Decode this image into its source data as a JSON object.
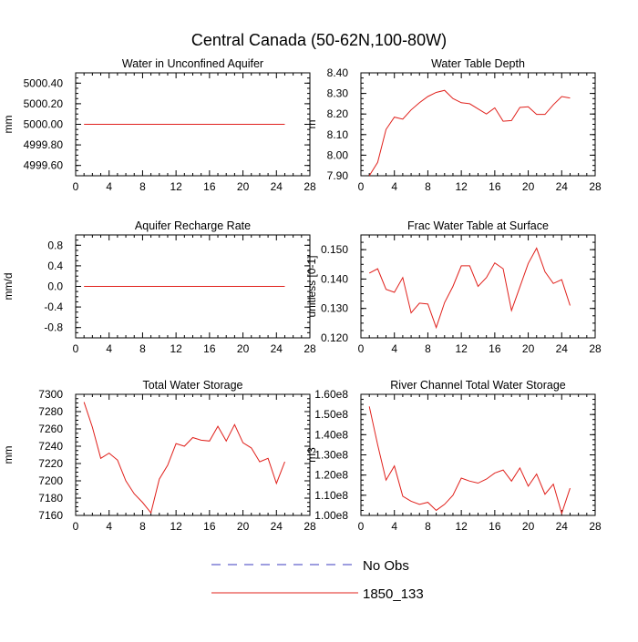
{
  "page": {
    "title": "Central Canada (50-62N,100-80W)"
  },
  "legend": {
    "items": [
      {
        "label": "No Obs",
        "color": "#3b3bbf",
        "style": "dashed"
      },
      {
        "label": "1850_133",
        "color": "#e0201b",
        "style": "solid"
      }
    ]
  },
  "chart_data": [
    {
      "type": "line",
      "title": "Water in Unconfined Aquifer",
      "ylabel": "mm",
      "xlim": [
        0,
        28
      ],
      "ylim": [
        4999.5,
        5000.5
      ],
      "xticks": [
        0,
        4,
        8,
        12,
        16,
        20,
        24,
        28
      ],
      "yticks": [
        4999.6,
        4999.8,
        5000.0,
        5000.2,
        5000.4
      ],
      "ytick_labels": [
        "4999.60",
        "4999.80",
        "5000.00",
        "5000.20",
        "5000.40"
      ],
      "series": [
        {
          "color": "#e0201b",
          "x": [
            1,
            25
          ],
          "values": [
            5000.0,
            5000.0
          ]
        }
      ]
    },
    {
      "type": "line",
      "title": "Water Table Depth",
      "ylabel": "m",
      "xlim": [
        0,
        28
      ],
      "ylim": [
        7.9,
        8.4
      ],
      "xticks": [
        0,
        4,
        8,
        12,
        16,
        20,
        24,
        28
      ],
      "yticks": [
        7.9,
        8.0,
        8.1,
        8.2,
        8.3,
        8.4
      ],
      "ytick_labels": [
        "7.90",
        "8.00",
        "8.10",
        "8.20",
        "8.30",
        "8.40"
      ],
      "series": [
        {
          "color": "#e0201b",
          "x": [
            1,
            2,
            3,
            4,
            5,
            6,
            7,
            8,
            9,
            10,
            11,
            12,
            13,
            14,
            15,
            16,
            17,
            18,
            19,
            20,
            21,
            22,
            23,
            24,
            25
          ],
          "values": [
            7.9,
            7.965,
            8.125,
            8.185,
            8.175,
            8.22,
            8.255,
            8.285,
            8.305,
            8.315,
            8.275,
            8.255,
            8.25,
            8.225,
            8.2,
            8.23,
            8.165,
            8.168,
            8.232,
            8.235,
            8.198,
            8.198,
            8.245,
            8.285,
            8.278
          ]
        }
      ]
    },
    {
      "type": "line",
      "title": "Aquifer Recharge Rate",
      "ylabel": "mm/d",
      "xlim": [
        0,
        28
      ],
      "ylim": [
        -1.0,
        1.0
      ],
      "xticks": [
        0,
        4,
        8,
        12,
        16,
        20,
        24,
        28
      ],
      "yticks": [
        -0.8,
        -0.4,
        0.0,
        0.4,
        0.8
      ],
      "ytick_labels": [
        "-0.8",
        "-0.4",
        "0.0",
        "0.4",
        "0.8"
      ],
      "series": [
        {
          "color": "#e0201b",
          "x": [
            1,
            25
          ],
          "values": [
            0.0,
            0.0
          ]
        }
      ]
    },
    {
      "type": "line",
      "title": "Frac Water Table at Surface",
      "ylabel": "unitless [0-1]",
      "xlim": [
        0,
        28
      ],
      "ylim": [
        0.12,
        0.155
      ],
      "xticks": [
        0,
        4,
        8,
        12,
        16,
        20,
        24,
        28
      ],
      "yticks": [
        0.12,
        0.13,
        0.14,
        0.15
      ],
      "ytick_labels": [
        "0.120",
        "0.130",
        "0.140",
        "0.150"
      ],
      "series": [
        {
          "color": "#e0201b",
          "x": [
            1,
            2,
            3,
            4,
            5,
            6,
            7,
            8,
            9,
            10,
            11,
            12,
            13,
            14,
            15,
            16,
            17,
            18,
            19,
            20,
            21,
            22,
            23,
            24,
            25
          ],
          "values": [
            0.142,
            0.1435,
            0.1365,
            0.1355,
            0.1405,
            0.1285,
            0.1318,
            0.1315,
            0.1235,
            0.132,
            0.1375,
            0.1445,
            0.1445,
            0.1375,
            0.1405,
            0.1455,
            0.1435,
            0.1293,
            0.1373,
            0.1453,
            0.1505,
            0.1425,
            0.1385,
            0.1398,
            0.131
          ]
        }
      ]
    },
    {
      "type": "line",
      "title": "Total Water Storage",
      "ylabel": "mm",
      "xlim": [
        0,
        28
      ],
      "ylim": [
        7160,
        7300
      ],
      "xticks": [
        0,
        4,
        8,
        12,
        16,
        20,
        24,
        28
      ],
      "yticks": [
        7160,
        7180,
        7200,
        7220,
        7240,
        7260,
        7280,
        7300
      ],
      "ytick_labels": [
        "7160",
        "7180",
        "7200",
        "7220",
        "7240",
        "7260",
        "7280",
        "7300"
      ],
      "series": [
        {
          "color": "#e0201b",
          "x": [
            1,
            2,
            3,
            4,
            5,
            6,
            7,
            8,
            9,
            10,
            11,
            12,
            13,
            14,
            15,
            16,
            17,
            18,
            19,
            20,
            21,
            22,
            23,
            24,
            25
          ],
          "values": [
            7291,
            7262,
            7226,
            7232,
            7224,
            7200,
            7185,
            7175,
            7163,
            7202,
            7218,
            7243,
            7240,
            7250,
            7247,
            7246,
            7263,
            7246,
            7265,
            7244,
            7238,
            7222,
            7226,
            7197,
            7222
          ]
        }
      ]
    },
    {
      "type": "line",
      "title": "River Channel Total Water Storage",
      "ylabel": "m3",
      "xlim": [
        0,
        28
      ],
      "ylim": [
        100000000.0,
        160000000.0
      ],
      "xticks": [
        0,
        4,
        8,
        12,
        16,
        20,
        24,
        28
      ],
      "yticks": [
        100000000.0,
        110000000.0,
        120000000.0,
        130000000.0,
        140000000.0,
        150000000.0,
        160000000.0
      ],
      "ytick_labels": [
        "1.00e8",
        "1.10e8",
        "1.20e8",
        "1.30e8",
        "1.40e8",
        "1.50e8",
        "1.60e8"
      ],
      "series": [
        {
          "color": "#e0201b",
          "x": [
            1,
            2,
            3,
            4,
            5,
            6,
            7,
            8,
            9,
            10,
            11,
            12,
            13,
            14,
            15,
            16,
            17,
            18,
            19,
            20,
            21,
            22,
            23,
            24,
            25
          ],
          "values": [
            154000000.0,
            135000000.0,
            117500000.0,
            124500000.0,
            109500000.0,
            107000000.0,
            105500000.0,
            106500000.0,
            102500000.0,
            105500000.0,
            110000000.0,
            118500000.0,
            117000000.0,
            116000000.0,
            118000000.0,
            121000000.0,
            122500000.0,
            117000000.0,
            123500000.0,
            114500000.0,
            120500000.0,
            110500000.0,
            115500000.0,
            101000000.0,
            113500000.0
          ]
        }
      ]
    }
  ]
}
